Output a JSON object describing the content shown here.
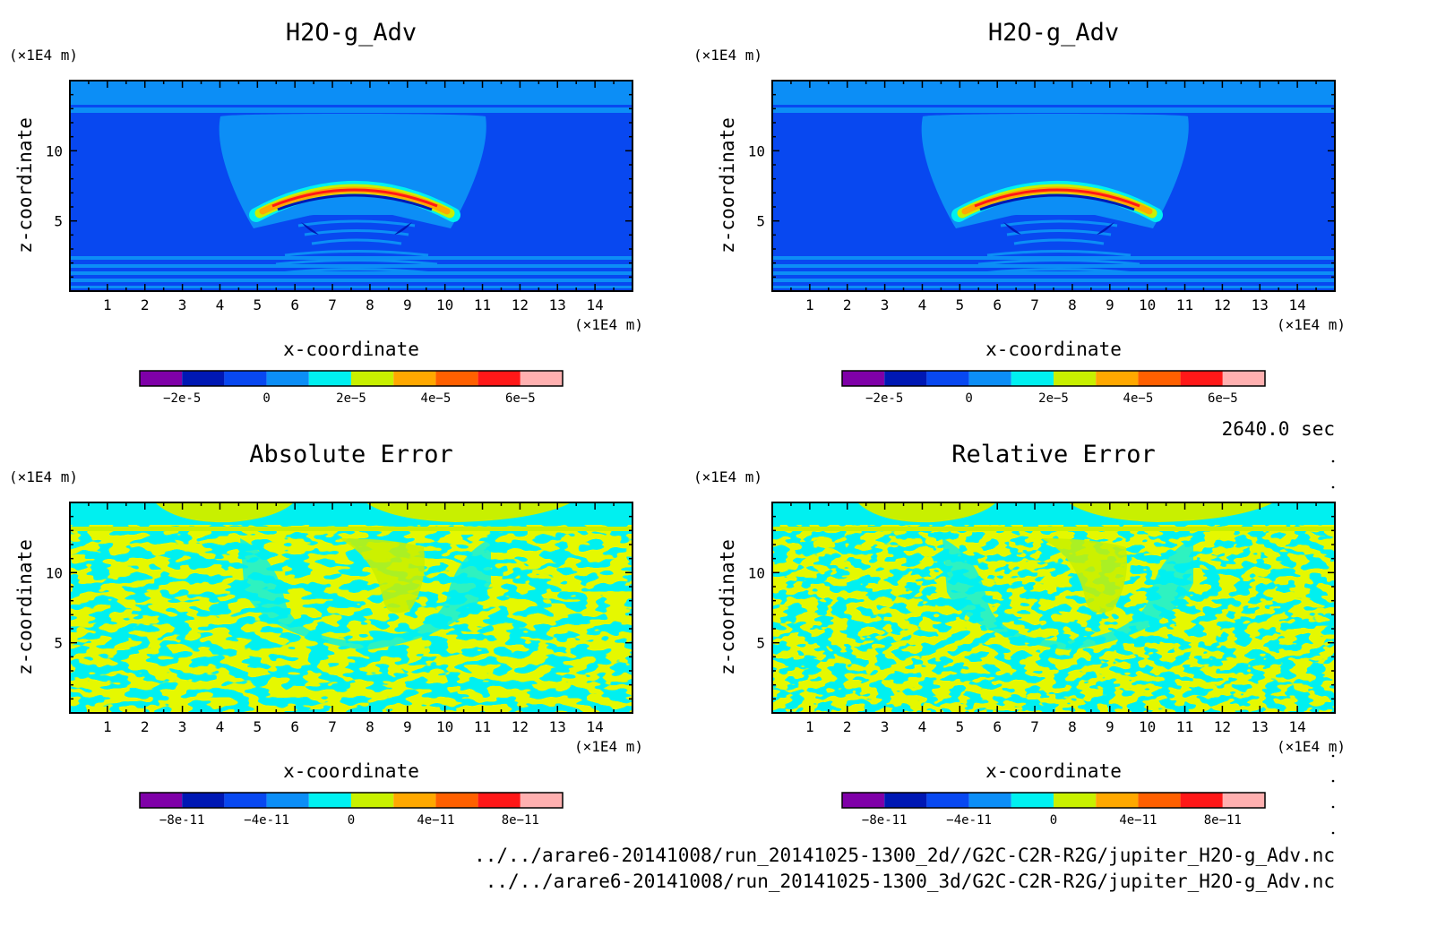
{
  "time_label": "2640.0 sec",
  "footer": {
    "file_2d": "../../arare6-20141008/run_20141025-1300_2d//G2C-C2R-R2G/jupiter_H2O-g_Adv.nc",
    "file_3d": "../../arare6-20141008/run_20141025-1300_3d/G2C-C2R-R2G/jupiter_H2O-g_Adv.nc"
  },
  "colorscale": [
    "#7f00a8",
    "#0018b4",
    "#0848f0",
    "#0c8ef6",
    "#00f0f0",
    "#c8f000",
    "#ffa800",
    "#ff6000",
    "#ff1818",
    "#ffb0b0"
  ],
  "chart_data": [
    {
      "type": "heatmap",
      "title": "H2O-g_Adv",
      "xlabel": "x-coordinate",
      "ylabel": "z-coordinate",
      "x_unit": "(×1E4 m)",
      "y_unit": "(×1E4 m)",
      "xlim": [
        0,
        15
      ],
      "ylim": [
        0,
        15
      ],
      "x_ticks": [
        "1",
        "2",
        "3",
        "4",
        "5",
        "6",
        "7",
        "8",
        "9",
        "10",
        "11",
        "12",
        "13",
        "14"
      ],
      "y_ticks": [
        "5",
        "10"
      ],
      "colorbar_ticks": [
        "-2e-5",
        "0",
        "2e-5",
        "4e-5",
        "6e-5"
      ],
      "colorbar_range": [
        -3e-05,
        7e-05
      ]
    },
    {
      "type": "heatmap",
      "title": "H2O-g_Adv",
      "xlabel": "x-coordinate",
      "ylabel": "z-coordinate",
      "x_unit": "(×1E4 m)",
      "y_unit": "(×1E4 m)",
      "xlim": [
        0,
        15
      ],
      "ylim": [
        0,
        15
      ],
      "x_ticks": [
        "1",
        "2",
        "3",
        "4",
        "5",
        "6",
        "7",
        "8",
        "9",
        "10",
        "11",
        "12",
        "13",
        "14"
      ],
      "y_ticks": [
        "5",
        "10"
      ],
      "colorbar_ticks": [
        "-2e-5",
        "0",
        "2e-5",
        "4e-5",
        "6e-5"
      ],
      "colorbar_range": [
        -3e-05,
        7e-05
      ]
    },
    {
      "type": "heatmap",
      "title": "Absolute Error",
      "xlabel": "x-coordinate",
      "ylabel": "z-coordinate",
      "x_unit": "(×1E4 m)",
      "y_unit": "(×1E4 m)",
      "xlim": [
        0,
        15
      ],
      "ylim": [
        0,
        15
      ],
      "x_ticks": [
        "1",
        "2",
        "3",
        "4",
        "5",
        "6",
        "7",
        "8",
        "9",
        "10",
        "11",
        "12",
        "13",
        "14"
      ],
      "y_ticks": [
        "5",
        "10"
      ],
      "colorbar_ticks": [
        "-8e-11",
        "-4e-11",
        "0",
        "4e-11",
        "8e-11"
      ],
      "colorbar_range": [
        -1e-10,
        1e-10
      ]
    },
    {
      "type": "heatmap",
      "title": "Relative Error",
      "xlabel": "x-coordinate",
      "ylabel": "z-coordinate",
      "x_unit": "(×1E4 m)",
      "y_unit": "(×1E4 m)",
      "xlim": [
        0,
        15
      ],
      "ylim": [
        0,
        15
      ],
      "x_ticks": [
        "1",
        "2",
        "3",
        "4",
        "5",
        "6",
        "7",
        "8",
        "9",
        "10",
        "11",
        "12",
        "13",
        "14"
      ],
      "y_ticks": [
        "5",
        "10"
      ],
      "colorbar_ticks": [
        "-8e-11",
        "-4e-11",
        "0",
        "4e-11",
        "8e-11"
      ],
      "colorbar_range": [
        -1e-10,
        1e-10
      ]
    }
  ]
}
